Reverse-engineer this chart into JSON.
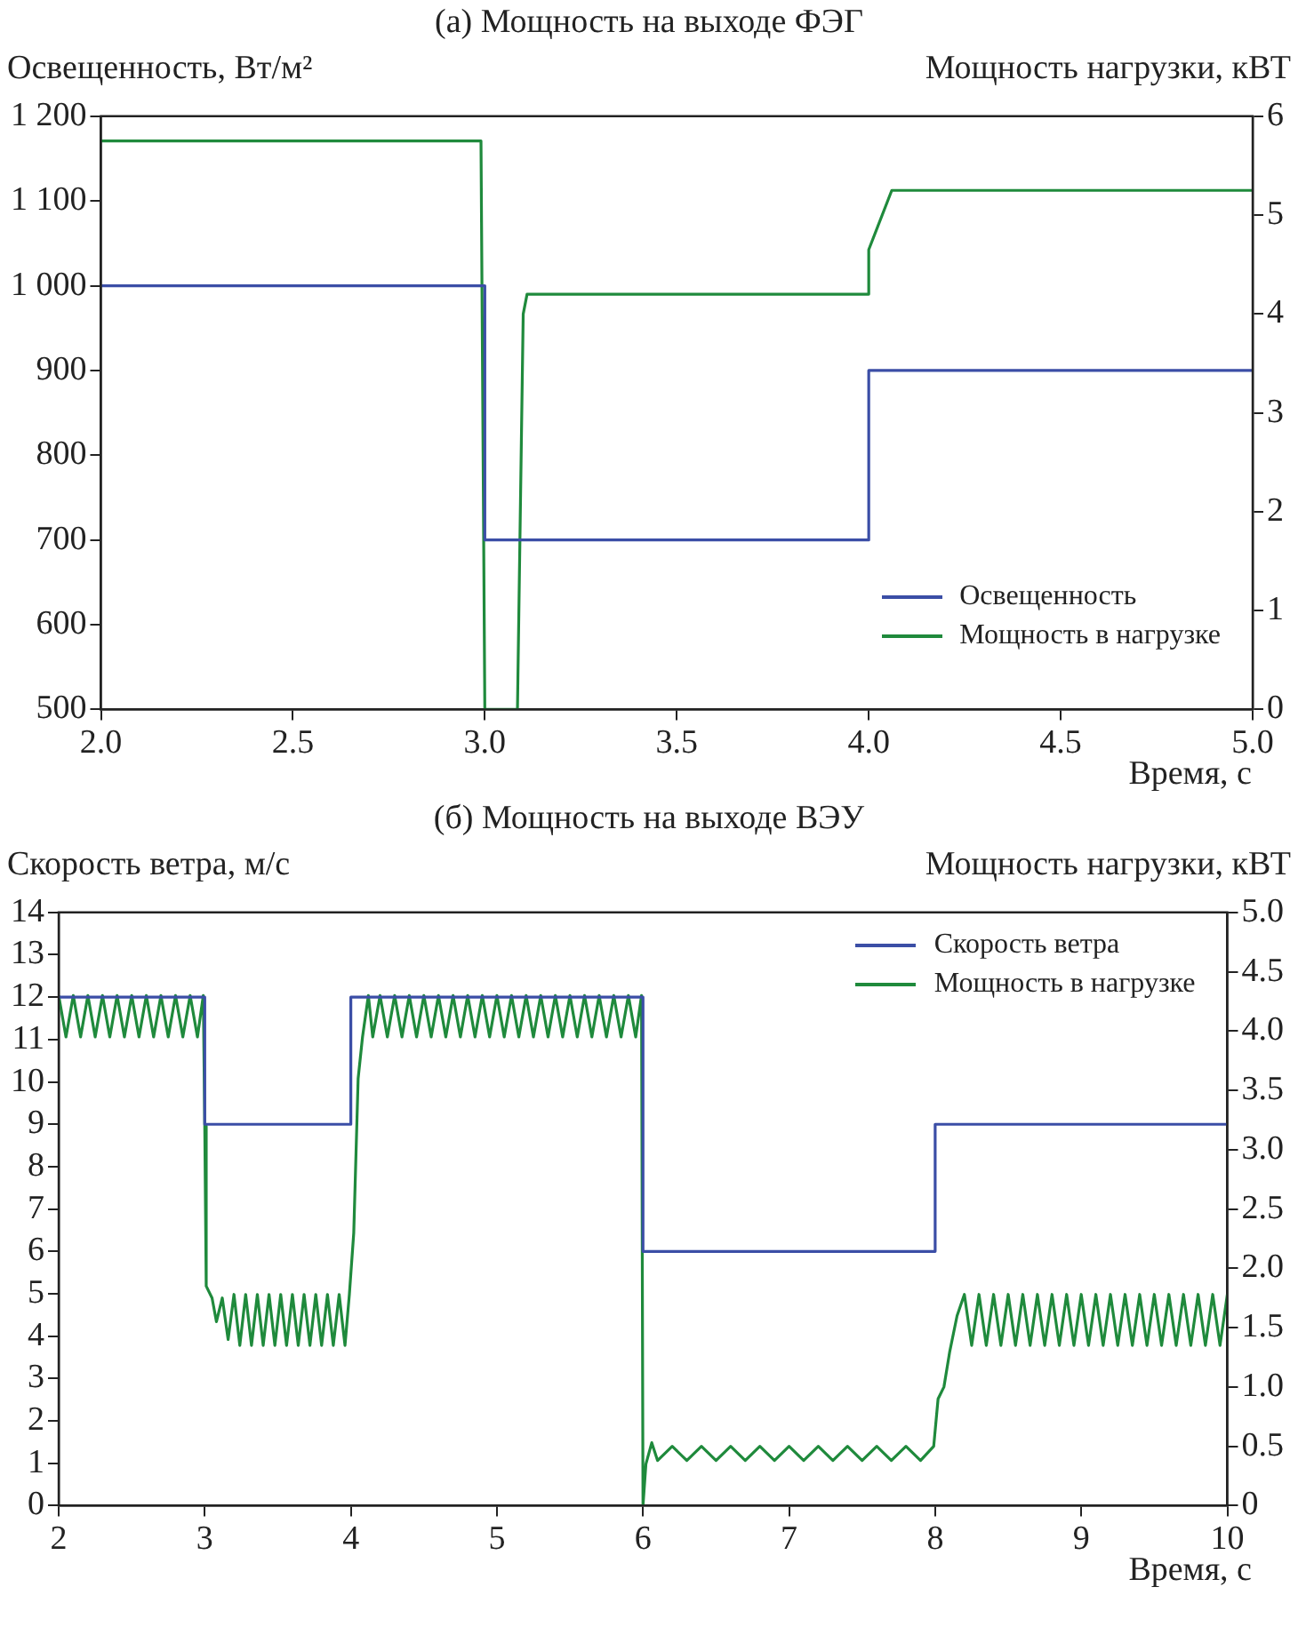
{
  "chart_data": [
    {
      "type": "line",
      "title": "(а) Мощность на выходе ФЭГ",
      "xlabel": "Время, с",
      "ylabel": "Освещенность, Вт/м²",
      "y2label": "Мощность нагрузки, кВТ",
      "xlim": [
        2,
        5
      ],
      "xticks": [
        {
          "value": 2,
          "label": "2.0"
        },
        {
          "value": 2.5,
          "label": "2.5"
        },
        {
          "value": 3,
          "label": "3.0"
        },
        {
          "value": 3.5,
          "label": "3.5"
        },
        {
          "value": 4,
          "label": "4.0"
        },
        {
          "value": 4.5,
          "label": "4.5"
        },
        {
          "value": 5,
          "label": "5.0"
        }
      ],
      "ylim": [
        500,
        1200
      ],
      "yticks": [
        500,
        600,
        700,
        800,
        900,
        {
          "value": 1000,
          "label": "1 000"
        },
        {
          "value": 1100,
          "label": "1 100"
        },
        {
          "value": 1200,
          "label": "1 200"
        }
      ],
      "y2lim": [
        0,
        6
      ],
      "y2ticks": [
        0,
        1,
        2,
        3,
        4,
        5,
        6
      ],
      "legend": "bottom right",
      "series": [
        {
          "name": "Освещенность",
          "color": "#3b4ea6",
          "x": [
            2,
            3,
            3,
            4,
            4,
            5
          ],
          "values": [
            1000,
            1000,
            700,
            700,
            900,
            900
          ]
        },
        {
          "name": "Мощность в нагрузке",
          "color": "#1f8a3c",
          "axis": "y2",
          "x": [
            2,
            2.99,
            3,
            3.085,
            3.1,
            3.11,
            4,
            4,
            4.06,
            5
          ],
          "values": [
            5.75,
            5.75,
            0,
            0,
            4,
            4.2,
            4.2,
            4.65,
            5.25,
            5.25
          ]
        }
      ]
    },
    {
      "type": "line",
      "title": "(б) Мощность на выходе ВЭУ",
      "xlabel": "Время, с",
      "ylabel": "Скорость ветра, м/с",
      "y2label": "Мощность нагрузки, кВТ",
      "xlim": [
        2,
        10
      ],
      "xticks": [
        2,
        3,
        4,
        5,
        6,
        7,
        8,
        9,
        10
      ],
      "ylim": [
        0,
        14
      ],
      "yticks": [
        0,
        1,
        2,
        3,
        4,
        5,
        6,
        7,
        8,
        9,
        10,
        11,
        12,
        13,
        14
      ],
      "y2lim": [
        0,
        5
      ],
      "y2ticks": [
        0,
        {
          "value": 0.5,
          "label": "0.5"
        },
        {
          "value": 1,
          "label": "1.0"
        },
        {
          "value": 1.5,
          "label": "1.5"
        },
        {
          "value": 2,
          "label": "2.0"
        },
        {
          "value": 2.5,
          "label": "2.5"
        },
        {
          "value": 3,
          "label": "3.0"
        },
        {
          "value": 3.5,
          "label": "3.5"
        },
        {
          "value": 4,
          "label": "4.0"
        },
        {
          "value": 4.5,
          "label": "4.5"
        },
        {
          "value": 5,
          "label": "5.0"
        }
      ],
      "legend": "top right",
      "series": [
        {
          "name": "Скорость ветра",
          "color": "#3b4ea6",
          "x": [
            2,
            3,
            3,
            4,
            4,
            6,
            6,
            8,
            8,
            10
          ],
          "values": [
            12,
            12,
            9,
            9,
            12,
            12,
            6,
            6,
            9,
            9
          ]
        },
        {
          "name": "Мощность в нагрузке",
          "color": "#1f8a3c",
          "axis": "y2",
          "x": [
            2,
            2.05,
            2.1,
            2.15,
            2.2,
            2.25,
            2.3,
            2.35,
            2.4,
            2.45,
            2.5,
            2.55,
            2.6,
            2.65,
            2.7,
            2.75,
            2.8,
            2.85,
            2.9,
            2.95,
            2.99,
            3,
            3.01,
            3.05,
            3.08,
            3.12,
            3.16,
            3.2,
            3.24,
            3.28,
            3.32,
            3.36,
            3.4,
            3.44,
            3.48,
            3.52,
            3.56,
            3.6,
            3.64,
            3.68,
            3.72,
            3.76,
            3.8,
            3.84,
            3.88,
            3.92,
            3.96,
            3.99,
            4.02,
            4.05,
            4.08,
            4.12,
            4.15,
            4.2,
            4.25,
            4.3,
            4.35,
            4.4,
            4.45,
            4.5,
            4.55,
            4.6,
            4.65,
            4.7,
            4.75,
            4.8,
            4.85,
            4.9,
            4.95,
            5,
            5.05,
            5.1,
            5.15,
            5.2,
            5.25,
            5.3,
            5.35,
            5.4,
            5.45,
            5.5,
            5.55,
            5.6,
            5.65,
            5.7,
            5.75,
            5.8,
            5.85,
            5.9,
            5.95,
            5.99,
            6,
            6.02,
            6.06,
            6.1,
            6.2,
            6.3,
            6.4,
            6.5,
            6.6,
            6.7,
            6.8,
            6.9,
            7,
            7.1,
            7.2,
            7.3,
            7.4,
            7.5,
            7.6,
            7.7,
            7.8,
            7.9,
            7.99,
            8.02,
            8.06,
            8.1,
            8.15,
            8.2,
            8.25,
            8.3,
            8.35,
            8.4,
            8.45,
            8.5,
            8.55,
            8.6,
            8.65,
            8.7,
            8.75,
            8.8,
            8.85,
            8.9,
            8.95,
            9,
            9.05,
            9.1,
            9.15,
            9.2,
            9.25,
            9.3,
            9.35,
            9.4,
            9.45,
            9.5,
            9.55,
            9.6,
            9.65,
            9.7,
            9.75,
            9.8,
            9.85,
            9.9,
            9.95,
            10
          ],
          "values": [
            4.3,
            3.95,
            4.3,
            3.95,
            4.3,
            3.95,
            4.3,
            3.95,
            4.3,
            3.95,
            4.3,
            3.95,
            4.3,
            3.95,
            4.3,
            3.95,
            4.3,
            3.95,
            4.3,
            3.95,
            4.3,
            3.2,
            1.85,
            1.75,
            1.55,
            1.75,
            1.4,
            1.78,
            1.35,
            1.78,
            1.35,
            1.78,
            1.35,
            1.78,
            1.35,
            1.78,
            1.35,
            1.78,
            1.35,
            1.78,
            1.35,
            1.78,
            1.35,
            1.78,
            1.35,
            1.78,
            1.35,
            1.78,
            2.3,
            3.6,
            3.95,
            4.3,
            3.95,
            4.3,
            3.95,
            4.3,
            3.95,
            4.3,
            3.95,
            4.3,
            3.95,
            4.3,
            3.95,
            4.3,
            3.95,
            4.3,
            3.95,
            4.3,
            3.95,
            4.3,
            3.95,
            4.3,
            3.95,
            4.3,
            3.95,
            4.3,
            3.95,
            4.3,
            3.95,
            4.3,
            3.95,
            4.3,
            3.95,
            4.3,
            3.95,
            4.3,
            3.95,
            4.3,
            3.95,
            4.3,
            0,
            0.35,
            0.53,
            0.38,
            0.5,
            0.38,
            0.5,
            0.38,
            0.5,
            0.38,
            0.5,
            0.38,
            0.5,
            0.38,
            0.5,
            0.38,
            0.5,
            0.38,
            0.5,
            0.38,
            0.5,
            0.38,
            0.5,
            0.9,
            1,
            1.3,
            1.6,
            1.78,
            1.35,
            1.78,
            1.35,
            1.78,
            1.35,
            1.78,
            1.35,
            1.78,
            1.35,
            1.78,
            1.35,
            1.78,
            1.35,
            1.78,
            1.35,
            1.78,
            1.35,
            1.78,
            1.35,
            1.78,
            1.35,
            1.78,
            1.35,
            1.78,
            1.35,
            1.78,
            1.35,
            1.78,
            1.35,
            1.78,
            1.35,
            1.78,
            1.35,
            1.78,
            1.35,
            1.78
          ]
        }
      ]
    }
  ]
}
